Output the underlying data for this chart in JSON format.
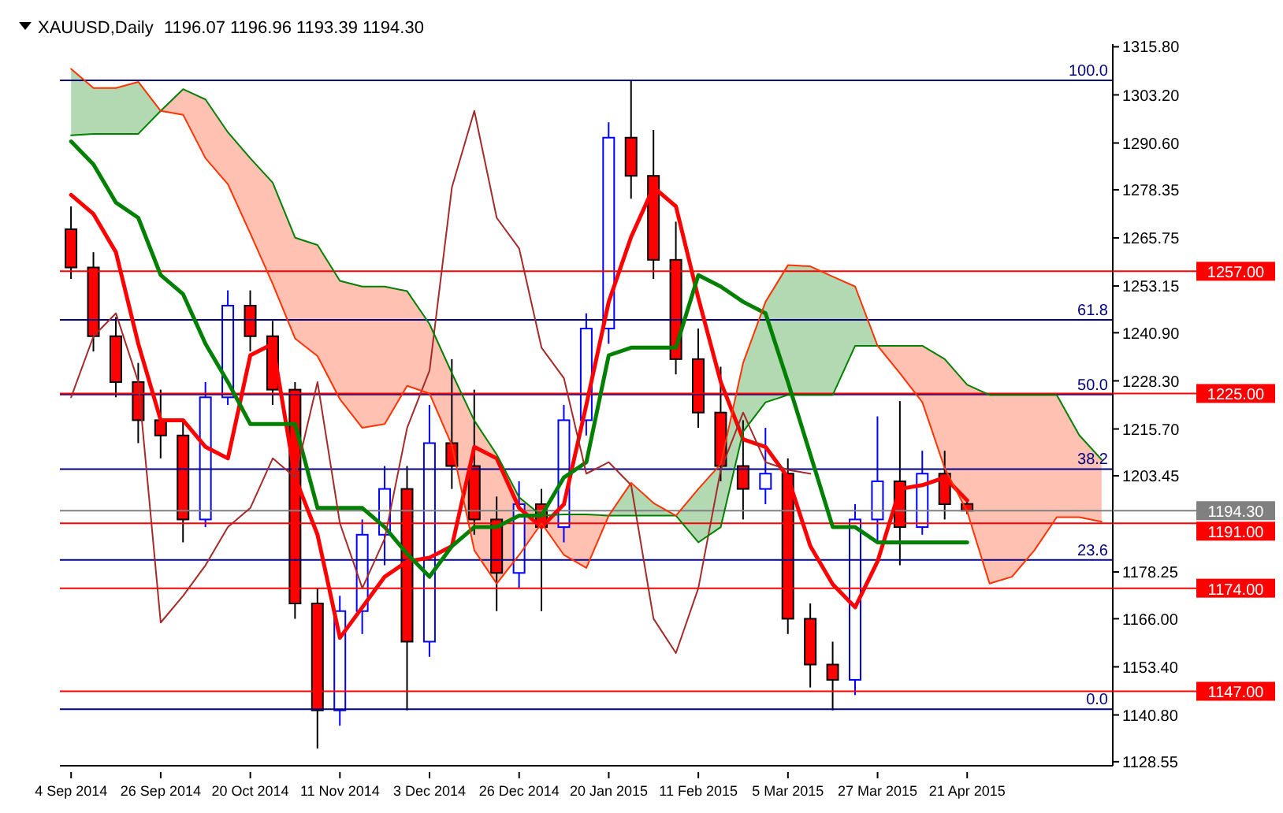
{
  "chart_data": {
    "type": "candlestick",
    "title": "XAUUSD,Daily",
    "subtitle": "1196.07 1196.96 1193.39 1194.30",
    "categories": [
      "4 Sep 2014",
      null,
      null,
      null,
      "26 Sep 2014",
      null,
      null,
      null,
      "20 Oct 2014",
      null,
      null,
      null,
      "11 Nov 2014",
      null,
      null,
      null,
      "3 Dec 2014",
      null,
      null,
      null,
      "26 Dec 2014",
      null,
      null,
      null,
      "20 Jan 2015",
      null,
      null,
      null,
      "11 Feb 2015",
      null,
      null,
      null,
      "5 Mar 2015",
      null,
      null,
      null,
      "27 Mar 2015",
      null,
      null,
      null,
      "21 Apr 2015",
      null,
      null,
      null,
      null,
      null,
      null
    ],
    "ylim": [
      1127.5,
      1316.5
    ],
    "yticks": [
      {
        "value": 1128.55,
        "label": "1128.55"
      },
      {
        "value": 1140.8,
        "label": "1140.80"
      },
      {
        "value": 1153.4,
        "label": "1153.40"
      },
      {
        "value": 1166,
        "label": "1166.00"
      },
      {
        "value": 1178.25,
        "label": "1178.25"
      },
      {
        "value": 1203.45,
        "label": "1203.45"
      },
      {
        "value": 1215.7,
        "label": "1215.70"
      },
      {
        "value": 1228.3,
        "label": "1228.30"
      },
      {
        "value": 1240.9,
        "label": "1240.90"
      },
      {
        "value": 1253.15,
        "label": "1253.15"
      },
      {
        "value": 1265.75,
        "label": "1265.75"
      },
      {
        "value": 1278.35,
        "label": "1278.35"
      },
      {
        "value": 1290.6,
        "label": "1290.60"
      },
      {
        "value": 1303.2,
        "label": "1303.20"
      },
      {
        "value": 1315.8,
        "label": "1315.80"
      }
    ],
    "series": [
      {
        "ohlc": [
          [
            1268,
            1274,
            1255,
            1258
          ],
          [
            1258,
            1262,
            1236,
            1240
          ],
          [
            1240,
            1245,
            1224,
            1228
          ],
          [
            1228,
            1233,
            1212,
            1218
          ],
          [
            1218,
            1226,
            1208,
            1214
          ],
          [
            1214,
            1218,
            1186,
            1192
          ],
          [
            1192,
            1228,
            1190,
            1224
          ],
          [
            1224,
            1252,
            1222,
            1248
          ],
          [
            1248,
            1252,
            1236,
            1240
          ],
          [
            1240,
            1244,
            1222,
            1226
          ],
          [
            1226,
            1228,
            1166,
            1170
          ],
          [
            1170,
            1174,
            1132,
            1142
          ],
          [
            1142,
            1172,
            1138,
            1168
          ],
          [
            1168,
            1192,
            1162,
            1188
          ],
          [
            1188,
            1206,
            1180,
            1200
          ],
          [
            1200,
            1206,
            1142,
            1160
          ],
          [
            1160,
            1222,
            1156,
            1212
          ],
          [
            1212,
            1234,
            1200,
            1206
          ],
          [
            1206,
            1226,
            1188,
            1192
          ],
          [
            1192,
            1198,
            1168,
            1178
          ],
          [
            1178,
            1202,
            1174,
            1196
          ],
          [
            1196,
            1200,
            1168,
            1190
          ],
          [
            1190,
            1222,
            1186,
            1218
          ],
          [
            1218,
            1246,
            1214,
            1242
          ],
          [
            1242,
            1296,
            1238,
            1292
          ],
          [
            1292,
            1307,
            1276,
            1282
          ],
          [
            1282,
            1294,
            1255,
            1260
          ],
          [
            1260,
            1270,
            1230,
            1234
          ],
          [
            1234,
            1242,
            1216,
            1220
          ],
          [
            1220,
            1232,
            1202,
            1206
          ],
          [
            1206,
            1218,
            1192,
            1200
          ],
          [
            1200,
            1216,
            1196,
            1204
          ],
          [
            1204,
            1208,
            1162,
            1166
          ],
          [
            1166,
            1170,
            1148,
            1154
          ],
          [
            1154,
            1160,
            1142,
            1150
          ],
          [
            1150,
            1196,
            1146,
            1192
          ],
          [
            1192,
            1219,
            1186,
            1202
          ],
          [
            1202,
            1223,
            1180,
            1190
          ],
          [
            1190,
            1210,
            1188,
            1204
          ],
          [
            1204,
            1210,
            1192,
            1196
          ],
          [
            1196.07,
            1196.96,
            1193.39,
            1194.3
          ],
          null,
          null,
          null,
          null,
          null,
          null
        ],
        "colors": [
          "#ff0000",
          "#ff0000",
          "#ff0000",
          "#ff0000",
          "#ff0000",
          "#ff0000",
          "#0000ff",
          "#0000ff",
          "#ff0000",
          "#ff0000",
          "#ff0000",
          "#ff0000",
          "#0000ff",
          "#0000ff",
          "#0000ff",
          "#ff0000",
          "#0000ff",
          "#ff0000",
          "#ff0000",
          "#ff0000",
          "#0000ff",
          "#ff0000",
          "#0000ff",
          "#0000ff",
          "#0000ff",
          "#ff0000",
          "#ff0000",
          "#ff0000",
          "#ff0000",
          "#ff0000",
          "#ff0000",
          "#0000ff",
          "#ff0000",
          "#ff0000",
          "#ff0000",
          "#0000ff",
          "#0000ff",
          "#ff0000",
          "#0000ff",
          "#ff0000",
          "#ff0000",
          null,
          null,
          null,
          null,
          null,
          null
        ]
      },
      {
        "type": "line",
        "color": "#ff0000",
        "values": [
          1277,
          1272,
          1262,
          1238,
          1218,
          1218,
          1211,
          1208,
          1235,
          1238,
          1203,
          1188,
          1161,
          1169,
          1177,
          1181,
          1182,
          1185,
          1211,
          1208,
          1195,
          1190,
          1196,
          1222,
          1249,
          1266,
          1279,
          1274,
          1250,
          1228,
          1213,
          1211,
          1203,
          1185,
          1175,
          1169,
          1181,
          1200,
          1201,
          1203,
          1197,
          null,
          null,
          null,
          null,
          null,
          null
        ]
      },
      {
        "type": "line",
        "color": "#008000",
        "values": [
          1291,
          1285,
          1275,
          1271,
          1256,
          1251,
          1238,
          1228,
          1217,
          1217,
          1217,
          1195,
          1195,
          1195,
          1190,
          1183,
          1177,
          1185,
          1190,
          1190,
          1193,
          1193,
          1203,
          1207,
          1235,
          1237,
          1237,
          1237,
          1256,
          1253,
          1249,
          1246,
          1228,
          1209,
          1190,
          1190,
          1186,
          1186,
          1186,
          1186,
          1186,
          null,
          null,
          null,
          null,
          null,
          null
        ]
      },
      {
        "type": "line",
        "color": "#a52a2a",
        "values": [
          1224,
          1240,
          1246,
          1228,
          1165,
          1172,
          1180,
          1190,
          1195,
          1208,
          1203,
          1228,
          1191,
          1174,
          1187,
          1216,
          1231,
          1279,
          1299,
          1271,
          1263,
          1237,
          1229,
          1204,
          1207,
          1201,
          1166,
          1157,
          1174,
          1205,
          1220,
          1207,
          1205,
          1204,
          null,
          null,
          null,
          null,
          null,
          null,
          null,
          null,
          null,
          null,
          null,
          null,
          null
        ]
      },
      {
        "type": "line",
        "color": "#008000",
        "values": [
          1292.6,
          1293,
          1293,
          1293,
          1299,
          1304.7,
          1302,
          1293.4,
          1286.6,
          1280.2,
          1265.8,
          1263.9,
          1254.5,
          1253,
          1253,
          1251.8,
          1243.2,
          1230.3,
          1217.9,
          1209,
          1197.8,
          1193,
          1193.3,
          1193.3,
          1193,
          1193,
          1193,
          1193,
          1186,
          1190,
          1215,
          1222.7,
          1224.6,
          1224.6,
          1224.6,
          1237.5,
          1237.5,
          1237.5,
          1237.5,
          1234,
          1227.3,
          1224.6,
          1224.6,
          1224.6,
          1224.6,
          1214.1,
          1207.7
        ],
        "lower": [
          1292.6,
          1293,
          1293,
          1293,
          1299,
          null,
          null,
          null,
          null,
          null,
          null,
          null,
          null,
          null,
          null,
          null,
          null,
          null,
          null,
          null,
          null,
          null,
          null,
          null,
          1193,
          1193,
          1193,
          1193,
          1186,
          1190,
          1215,
          1222.7,
          1224.6,
          1224.6,
          1224.6,
          1237.5,
          1237.5,
          null,
          null,
          null,
          null,
          null,
          null,
          null,
          null,
          null,
          null
        ],
        "upper": [
          1310,
          1305,
          1305,
          1306.6,
          1299,
          null,
          null,
          null,
          null,
          null,
          null,
          null,
          null,
          null,
          null,
          null,
          null,
          null,
          null,
          null,
          null,
          null,
          null,
          null,
          1193,
          1201.6,
          1196.3,
          1193,
          1200,
          1206.5,
          1233,
          1249,
          1258.6,
          1258.3,
          1255.6,
          1253,
          1237.5,
          null,
          null,
          null,
          null,
          null,
          null,
          null,
          null,
          null,
          null
        ]
      },
      {
        "type": "line",
        "color": "#ff3300",
        "values": [
          1310,
          1305,
          1305,
          1306.6,
          1299,
          1298,
          1286.6,
          1279.8,
          1266.9,
          1253.7,
          1239.4,
          1234.8,
          1223.5,
          1216,
          1217,
          1227,
          1225,
          1211.4,
          1183.9,
          1175.2,
          1182.7,
          1191,
          1182.7,
          1179.3,
          1193,
          1201.6,
          1196.3,
          1193,
          1200,
          1206.5,
          1233,
          1249,
          1258.6,
          1258.3,
          1255.6,
          1253,
          1237.5,
          1230.3,
          1222.7,
          1205.4,
          1194.1,
          1175.2,
          1177,
          1183.9,
          1192.6,
          1192.6,
          1191.4
        ],
        "lower": [
          null,
          null,
          null,
          null,
          1299,
          1298,
          1286.6,
          1279.8,
          1266.9,
          1253.7,
          1239.4,
          1234.8,
          1223.5,
          1216,
          1217,
          1227,
          1225,
          1211.4,
          1183.9,
          1175.2,
          1182.7,
          1191,
          1182.7,
          1179.3,
          1193,
          null,
          null,
          null,
          null,
          null,
          null,
          null,
          null,
          null,
          null,
          null,
          1237.5,
          1230.3,
          1222.7,
          1205.4,
          1194.1,
          1175.2,
          1177,
          1183.9,
          1192.6,
          1192.6,
          1191.4
        ],
        "upper": [
          null,
          null,
          null,
          null,
          1299,
          1304.7,
          1302,
          1293.4,
          1286.6,
          1280.2,
          1265.8,
          1263.9,
          1254.5,
          1253,
          1253,
          1251.8,
          1243.2,
          1230.3,
          1217.9,
          1209,
          1197.8,
          1193,
          1193.3,
          1193.3,
          1193,
          null,
          null,
          null,
          null,
          null,
          null,
          null,
          null,
          null,
          null,
          null,
          1237.5,
          1237.5,
          1237.5,
          1234,
          1227.3,
          1224.6,
          1224.6,
          1224.6,
          1224.6,
          1214.1,
          1207.7
        ]
      }
    ],
    "ref_lines": [
      {
        "axis": "y",
        "value": 1307,
        "color": "#000080"
      },
      {
        "axis": "y",
        "value": 1244.3,
        "color": "#000080"
      },
      {
        "axis": "y",
        "value": 1224.75,
        "color": "#000080"
      },
      {
        "axis": "y",
        "value": 1205.2,
        "color": "#000080"
      },
      {
        "axis": "y",
        "value": 1181.4,
        "color": "#000080"
      },
      {
        "axis": "y",
        "value": 1142.3,
        "color": "#000080"
      },
      {
        "axis": "y",
        "value": 1257,
        "label": "1257.00",
        "color": "#ff0000"
      },
      {
        "axis": "y",
        "value": 1225,
        "label": "1225.00",
        "color": "#ff0000"
      },
      {
        "axis": "y",
        "value": 1194.3,
        "label": "1194.30",
        "color": "#808080"
      },
      {
        "axis": "y",
        "value": 1191,
        "label": "1191.00",
        "color": "#ff0000"
      },
      {
        "axis": "y",
        "value": 1174,
        "label": "1174.00",
        "color": "#ff0000"
      },
      {
        "axis": "y",
        "value": 1147,
        "label": "1147.00",
        "color": "#ff0000"
      }
    ],
    "annotations": [
      {
        "text": "100.0",
        "y": 1307
      },
      {
        "text": "61.8",
        "y": 1244.3
      },
      {
        "text": "50.0",
        "y": 1224.75
      },
      {
        "text": "38.2",
        "y": 1205.2
      },
      {
        "text": "23.6",
        "y": 1181.4
      },
      {
        "text": "0.0",
        "y": 1142.3
      }
    ]
  }
}
